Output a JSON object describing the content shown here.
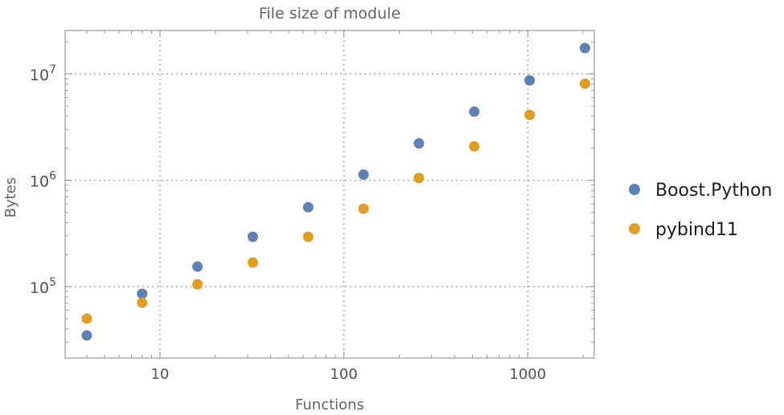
{
  "chart_data": {
    "type": "scatter",
    "title": "File size of module",
    "xlabel": "Functions",
    "ylabel": "Bytes",
    "xscale": "log",
    "yscale": "log",
    "xlim": [
      3.05,
      2300
    ],
    "ylim": [
      21300,
      25600000
    ],
    "grid": true,
    "grid_style": "dotted",
    "legend": "right",
    "x_ticks": [
      {
        "value": 10,
        "label": "10"
      },
      {
        "value": 100,
        "label": "100"
      },
      {
        "value": 1000,
        "label": "1000"
      }
    ],
    "y_ticks": [
      {
        "value": 100000,
        "base": "10",
        "exp": "5"
      },
      {
        "value": 1000000,
        "base": "10",
        "exp": "6"
      },
      {
        "value": 10000000,
        "base": "10",
        "exp": "7"
      }
    ],
    "x": [
      4,
      8,
      16,
      32,
      64,
      128,
      256,
      512,
      1024,
      2048
    ],
    "series": [
      {
        "name": "Boost.Python",
        "color": "#5e81b5",
        "values": [
          34700,
          85500,
          154000,
          294000,
          558000,
          1130000,
          2220000,
          4420000,
          8700000,
          17500000
        ]
      },
      {
        "name": "pybind11",
        "color": "#e19c24",
        "values": [
          49900,
          70600,
          105000,
          168000,
          294000,
          540000,
          1050000,
          2080000,
          4120000,
          8100000
        ]
      }
    ]
  }
}
